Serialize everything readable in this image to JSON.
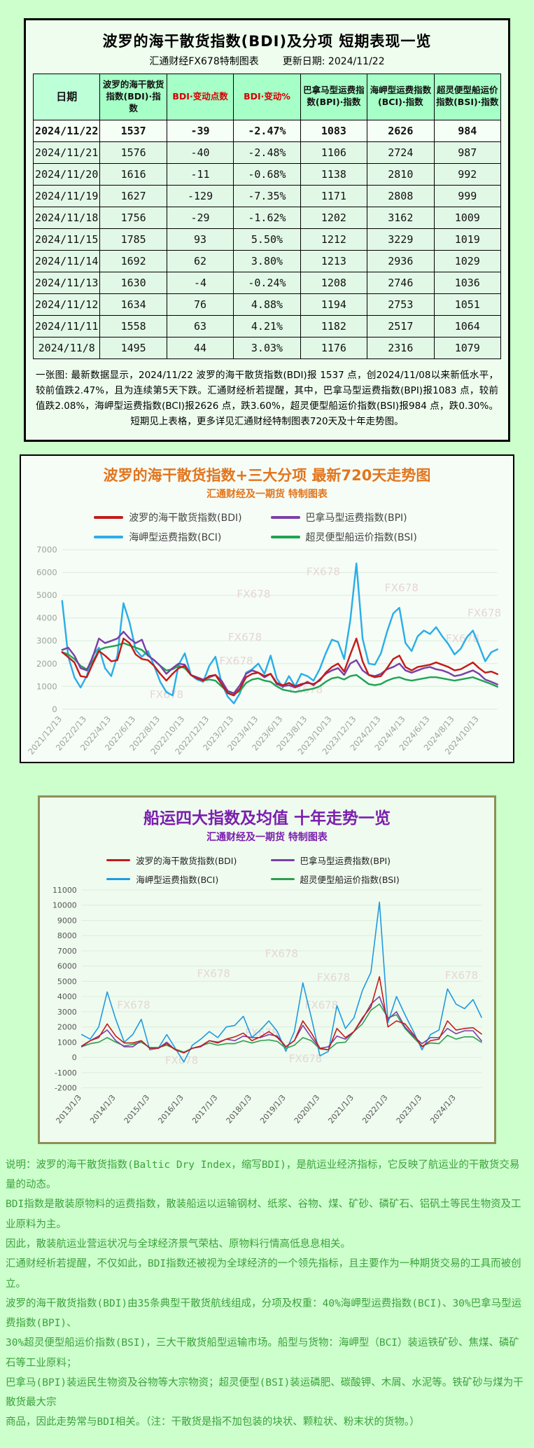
{
  "table_card": {
    "title": "波罗的海干散货指数(BDI)及分项 短期表现一览",
    "subtitle_left": "汇通财经FX678特制图表",
    "subtitle_right": "更新日期: 2024/11/22",
    "columns": [
      "日期",
      "波罗的海干散货指数(BDI)·指数",
      "BDI·变动点数",
      "BDI·变动%",
      "巴拿马型运费指数(BPI)·指数",
      "海岬型运费指数(BCI)·指数",
      "超灵便型船运价指数(BSI)·指数"
    ],
    "rows": [
      [
        "2024/11/22",
        "1537",
        "-39",
        "-2.47%",
        "1083",
        "2626",
        "984"
      ],
      [
        "2024/11/21",
        "1576",
        "-40",
        "-2.48%",
        "1106",
        "2724",
        "987"
      ],
      [
        "2024/11/20",
        "1616",
        "-11",
        "-0.68%",
        "1138",
        "2810",
        "992"
      ],
      [
        "2024/11/19",
        "1627",
        "-129",
        "-7.35%",
        "1171",
        "2808",
        "999"
      ],
      [
        "2024/11/18",
        "1756",
        "-29",
        "-1.62%",
        "1202",
        "3162",
        "1009"
      ],
      [
        "2024/11/15",
        "1785",
        "93",
        "5.50%",
        "1212",
        "3229",
        "1019"
      ],
      [
        "2024/11/14",
        "1692",
        "62",
        "3.80%",
        "1213",
        "2936",
        "1029"
      ],
      [
        "2024/11/13",
        "1630",
        "-4",
        "-0.24%",
        "1208",
        "2746",
        "1036"
      ],
      [
        "2024/11/12",
        "1634",
        "76",
        "4.88%",
        "1194",
        "2753",
        "1051"
      ],
      [
        "2024/11/11",
        "1558",
        "63",
        "4.21%",
        "1182",
        "2517",
        "1064"
      ],
      [
        "2024/11/8",
        "1495",
        "44",
        "3.03%",
        "1176",
        "2316",
        "1079"
      ]
    ],
    "note": "一张图: 最新数据显示，2024/11/22 波罗的海干散货指数(BDI)报 1537 点，创2024/11/08以来新低水平，较前值跌2.47%，且为连续第5天下跌。汇通财经析若提醒，其中，巴拿马型运费指数(BPI)报1083 点，较前值跌2.08%，海岬型运费指数(BCI)报2626 点，跌3.60%，超灵便型船运价指数(BSI)报984 点，跌0.30%。短期见上表格，更多详见汇通财经特制图表720天及十年走势图。"
  },
  "chart_data": [
    {
      "type": "line",
      "title": "波罗的海干散货指数+三大分项  最新720天走势图",
      "subtitle": "汇通财经及一期货 特制图表",
      "watermark": "FX678",
      "x_first": "2021/12/13",
      "x_interval_days": 15,
      "xticks": [
        "2021/12/13",
        "2022/2/13",
        "2022/4/13",
        "2022/6/13",
        "2022/8/13",
        "2022/10/13",
        "2022/12/13",
        "2023/2/13",
        "2023/4/13",
        "2023/6/13",
        "2023/8/13",
        "2023/10/13",
        "2023/12/13",
        "2024/2/13",
        "2024/4/13",
        "2024/6/13",
        "2024/8/13",
        "2024/10/13"
      ],
      "xtick_index": [
        0,
        4,
        8,
        12,
        16,
        20,
        24,
        28,
        32,
        36,
        40,
        44,
        48,
        52,
        56,
        60,
        64,
        68
      ],
      "ylim": [
        0,
        7000
      ],
      "yticks": [
        0,
        1000,
        2000,
        3000,
        4000,
        5000,
        6000,
        7000
      ],
      "grid": true,
      "legend_position": "top",
      "watermarks": [
        {
          "x": 0.6,
          "y": 0.16
        },
        {
          "x": 0.44,
          "y": 0.3
        },
        {
          "x": 0.78,
          "y": 0.26
        },
        {
          "x": 0.97,
          "y": 0.42
        },
        {
          "x": 0.42,
          "y": 0.57
        },
        {
          "x": 0.92,
          "y": 0.58
        },
        {
          "x": 0.4,
          "y": 0.72
        },
        {
          "x": 0.56,
          "y": 0.9
        },
        {
          "x": 0.24,
          "y": 0.93
        }
      ],
      "series": [
        {
          "name": "波罗的海干散货指数(BDI)",
          "color": "#c41a1a",
          "values": [
            2500,
            2280,
            2050,
            1450,
            1400,
            2000,
            2550,
            2350,
            2100,
            2150,
            3100,
            2900,
            2400,
            2200,
            2150,
            1900,
            1550,
            1250,
            1550,
            1800,
            1900,
            1500,
            1350,
            1250,
            1450,
            1500,
            1100,
            700,
            600,
            900,
            1400,
            1550,
            1600,
            1450,
            1550,
            1150,
            1050,
            1150,
            1000,
            1100,
            1150,
            1100,
            1250,
            1600,
            1850,
            2000,
            1650,
            2400,
            3100,
            2100,
            1500,
            1400,
            1450,
            1800,
            2200,
            2350,
            1850,
            1700,
            1850,
            1900,
            1950,
            2050,
            1950,
            1850,
            1700,
            1750,
            1900,
            2050,
            1800,
            1600,
            1650,
            1537
          ]
        },
        {
          "name": "巴拿马型运费指数(BPI)",
          "color": "#7a3fa8",
          "values": [
            2600,
            2700,
            2350,
            1800,
            1700,
            2300,
            3100,
            2900,
            3000,
            3100,
            3400,
            3100,
            2900,
            3050,
            2350,
            2150,
            1900,
            1550,
            1800,
            2000,
            1950,
            1500,
            1400,
            1300,
            1400,
            1500,
            1250,
            800,
            700,
            1050,
            1550,
            1700,
            1600,
            1400,
            1550,
            1100,
            1000,
            1050,
            950,
            1050,
            1200,
            1050,
            1300,
            1550,
            1700,
            1800,
            1500,
            2000,
            2150,
            1700,
            1500,
            1450,
            1550,
            1750,
            1850,
            2000,
            1700,
            1600,
            1700,
            1800,
            1850,
            1750,
            1700,
            1600,
            1450,
            1500,
            1600,
            1700,
            1550,
            1300,
            1200,
            1083
          ]
        },
        {
          "name": "海岬型运费指数(BCI)",
          "color": "#2aaee8",
          "values": [
            4750,
            2300,
            1400,
            950,
            1450,
            2350,
            2700,
            1800,
            1450,
            2350,
            4650,
            3800,
            2600,
            2300,
            2550,
            1900,
            1200,
            750,
            600,
            1950,
            2450,
            1500,
            1300,
            1200,
            1900,
            2300,
            1150,
            550,
            250,
            700,
            1600,
            1750,
            2000,
            1550,
            2350,
            1350,
            950,
            1450,
            1000,
            1550,
            1450,
            1250,
            1750,
            2450,
            3050,
            2950,
            2200,
            3900,
            6400,
            3100,
            2000,
            1950,
            2450,
            3400,
            4200,
            4450,
            2900,
            2550,
            3200,
            3450,
            3300,
            3600,
            3200,
            2850,
            2400,
            2650,
            3150,
            3450,
            2800,
            2100,
            2500,
            2626
          ]
        },
        {
          "name": "超灵便型船运价指数(BSI)",
          "color": "#1fa355",
          "values": [
            2500,
            2400,
            2200,
            1900,
            1750,
            2100,
            2600,
            2700,
            2750,
            2800,
            2900,
            2800,
            2700,
            2600,
            2350,
            2150,
            1900,
            1700,
            1750,
            1900,
            1800,
            1500,
            1350,
            1250,
            1300,
            1250,
            1000,
            750,
            650,
            800,
            1150,
            1300,
            1350,
            1250,
            1200,
            1000,
            850,
            800,
            750,
            800,
            850,
            900,
            1000,
            1200,
            1350,
            1400,
            1300,
            1450,
            1500,
            1300,
            1100,
            1050,
            1100,
            1250,
            1350,
            1400,
            1300,
            1250,
            1300,
            1350,
            1400,
            1400,
            1350,
            1300,
            1250,
            1300,
            1350,
            1400,
            1300,
            1200,
            1100,
            984
          ]
        }
      ]
    },
    {
      "type": "line",
      "title": "船运四大指数及均值 十年走势一览",
      "subtitle": "汇通财经及一期货 特制图表",
      "watermark": "FX678",
      "x_first": "2013/1/3",
      "x_interval_months": 3,
      "xticks": [
        "2013/1/3",
        "2014/1/3",
        "2015/1/3",
        "2016/1/3",
        "2017/1/3",
        "2018/1/3",
        "2019/1/3",
        "2020/1/3",
        "2021/1/3",
        "2022/1/3",
        "2023/1/3",
        "2024/1/3"
      ],
      "xtick_index": [
        0,
        4,
        8,
        12,
        16,
        20,
        24,
        28,
        32,
        36,
        40,
        44
      ],
      "ylim": [
        -2000,
        11000
      ],
      "yticks": [
        -2000,
        -1000,
        0,
        1000,
        2000,
        3000,
        4000,
        5000,
        6000,
        7000,
        8000,
        9000,
        10000,
        11000
      ],
      "grid": true,
      "legend_position": "top",
      "watermarks": [
        {
          "x": 0.5,
          "y": 0.34
        },
        {
          "x": 0.33,
          "y": 0.44
        },
        {
          "x": 0.63,
          "y": 0.46
        },
        {
          "x": 0.95,
          "y": 0.45
        },
        {
          "x": 0.13,
          "y": 0.6
        },
        {
          "x": 0.6,
          "y": 0.6
        },
        {
          "x": 0.45,
          "y": 0.74
        },
        {
          "x": 0.25,
          "y": 0.88
        },
        {
          "x": 0.56,
          "y": 0.87
        }
      ],
      "series": [
        {
          "name": "波罗的海干散货指数(BDI)",
          "color": "#c41a1a",
          "values": [
            750,
            1100,
            1300,
            2200,
            1400,
            950,
            950,
            1100,
            600,
            600,
            900,
            500,
            300,
            600,
            750,
            1100,
            950,
            1200,
            1350,
            1600,
            1100,
            1350,
            1700,
            1300,
            700,
            1100,
            2400,
            1600,
            600,
            500,
            1900,
            1300,
            1700,
            2600,
            3300,
            5300,
            2000,
            2400,
            2200,
            1500,
            700,
            1100,
            1200,
            2400,
            1800,
            1900,
            1950,
            1537
          ]
        },
        {
          "name": "巴拿马型运费指数(BPI)",
          "color": "#7a3fa8",
          "values": [
            700,
            1100,
            1400,
            1800,
            1100,
            700,
            700,
            1100,
            600,
            600,
            1000,
            500,
            300,
            600,
            700,
            1100,
            1000,
            1200,
            1100,
            1400,
            1300,
            1300,
            1500,
            1400,
            700,
            1100,
            2100,
            1300,
            600,
            700,
            1400,
            1200,
            1700,
            2500,
            3500,
            4000,
            2500,
            3000,
            2000,
            1400,
            900,
            1300,
            1300,
            1900,
            1550,
            1750,
            1750,
            1083
          ]
        },
        {
          "name": "海岬型运费指数(BCI)",
          "color": "#1f9ae0",
          "values": [
            1500,
            1200,
            2000,
            4300,
            2500,
            1000,
            1500,
            2500,
            500,
            600,
            1500,
            600,
            -300,
            800,
            1200,
            1700,
            1300,
            2000,
            2100,
            2700,
            1300,
            1800,
            2400,
            1700,
            400,
            1700,
            4900,
            2600,
            100,
            400,
            3400,
            1900,
            2600,
            4400,
            5600,
            10200,
            2300,
            4000,
            2800,
            1700,
            500,
            1500,
            1800,
            4500,
            3500,
            3200,
            3800,
            2626
          ]
        },
        {
          "name": "超灵便型船运价指数(BSI)",
          "color": "#2e9e4f",
          "values": [
            700,
            900,
            1000,
            1300,
            1000,
            750,
            850,
            1000,
            650,
            650,
            800,
            550,
            350,
            600,
            750,
            950,
            800,
            900,
            900,
            1100,
            950,
            1100,
            1150,
            1050,
            600,
            800,
            1300,
            1100,
            550,
            500,
            950,
            1000,
            1700,
            2200,
            3100,
            3500,
            2600,
            2800,
            1900,
            1300,
            750,
            950,
            900,
            1450,
            1200,
            1350,
            1350,
            984
          ]
        }
      ]
    }
  ],
  "footer": {
    "lines": [
      "说明：波罗的海干散货指数(Baltic Dry Index，缩写BDI)，是航运业经济指标，它反映了航运业的干散货交易量的动态。",
      "BDI指数是散装原物料的运费指数，散装船运以运输钢材、纸浆、谷物、煤、矿砂、磷矿石、铝矾土等民生物资及工业原料为主。",
      "因此，散装航运业营运状况与全球经济景气荣枯、原物料行情高低息息相关。",
      "汇通财经析若提醒，不仅如此，BDI指数还被视为全球经济的一个领先指标，且主要作为一种期货交易的工具而被创立。",
      "波罗的海干散货指数(BDI)由35条典型干散货航线组成，分项及权重：40%海岬型运费指数(BCI)、30%巴拿马型运费指数(BPI)、",
      "30%超灵便型船运价指数(BSI)，三大干散货船型运输市场。船型与货物：海岬型（BCI）装运铁矿砂、焦煤、磷矿石等工业原料；",
      "巴拿马(BPI)装运民生物资及谷物等大宗物资；超灵便型(BSI)装运磷肥、碳酸钾、木屑、水泥等。铁矿砂与煤为干散货最大宗",
      "商品，因此走势常与BDI相关。（注：干散货是指不加包装的块状、颗粒状、粉末状的货物。）"
    ]
  }
}
